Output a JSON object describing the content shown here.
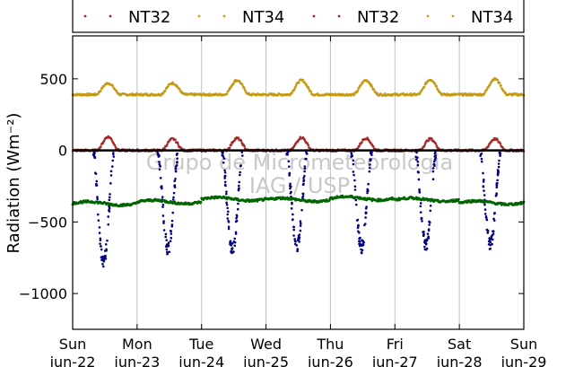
{
  "chart_data": {
    "type": "scatter",
    "title": "",
    "xlabel": "",
    "ylabel": "Radiation (Wm⁻²)",
    "ylim": [
      -1250,
      800
    ],
    "yticks": [
      -1000,
      -500,
      0,
      500
    ],
    "ytick_labels": [
      "−1000",
      "−500",
      "0",
      "500"
    ],
    "x_range_days": [
      0,
      7
    ],
    "x_ticks": [
      {
        "day": 0,
        "line1": "Sun",
        "line2": "jun-22"
      },
      {
        "day": 1,
        "line1": "Mon",
        "line2": "jun-23"
      },
      {
        "day": 2,
        "line1": "Tue",
        "line2": "jun-24"
      },
      {
        "day": 3,
        "line1": "Wed",
        "line2": "jun-25"
      },
      {
        "day": 4,
        "line1": "Thu",
        "line2": "jun-26"
      },
      {
        "day": 5,
        "line1": "Fri",
        "line2": "jun-27"
      },
      {
        "day": 6,
        "line1": "Sat",
        "line2": "jun-28"
      },
      {
        "day": 7,
        "line1": "Sun",
        "line2": "jun-29"
      }
    ],
    "grid": "x-only",
    "legend": {
      "placement": "top",
      "entries": [
        {
          "label": "NT32",
          "color": "#b22222"
        },
        {
          "label": "NT34",
          "color": "#d4a017"
        },
        {
          "label": "NT32",
          "color": "#b22222"
        },
        {
          "label": "NT34",
          "color": "#d4a017"
        }
      ]
    },
    "watermark": [
      "Grupo de Micrometeorologia",
      "IAG / USP"
    ],
    "series": [
      {
        "color": "#c49a16",
        "baseline": 390,
        "daily_peak": [
          470,
          470,
          490,
          490,
          490,
          495,
          500
        ]
      },
      {
        "color": "#a52a2a",
        "baseline": 0,
        "daily_peak": [
          95,
          80,
          85,
          90,
          85,
          80,
          80
        ]
      },
      {
        "color": "#000000",
        "baseline": 0,
        "daily_peak": [
          0,
          0,
          0,
          0,
          0,
          0,
          0
        ]
      },
      {
        "color": "#000080",
        "baseline": 0,
        "daily_peak": [
          -780,
          -690,
          -690,
          -665,
          -675,
          -660,
          -655
        ]
      },
      {
        "color": "#006400",
        "baseline": -360,
        "daily_peak": [
          -370,
          -360,
          -340,
          -345,
          -335,
          -345,
          -365
        ]
      }
    ]
  },
  "colors": {
    "nt32": "#b22222",
    "nt34": "#d4a017",
    "shortwave": "#000080",
    "longwave_net": "#006400",
    "grid": "#c0c0c0"
  }
}
